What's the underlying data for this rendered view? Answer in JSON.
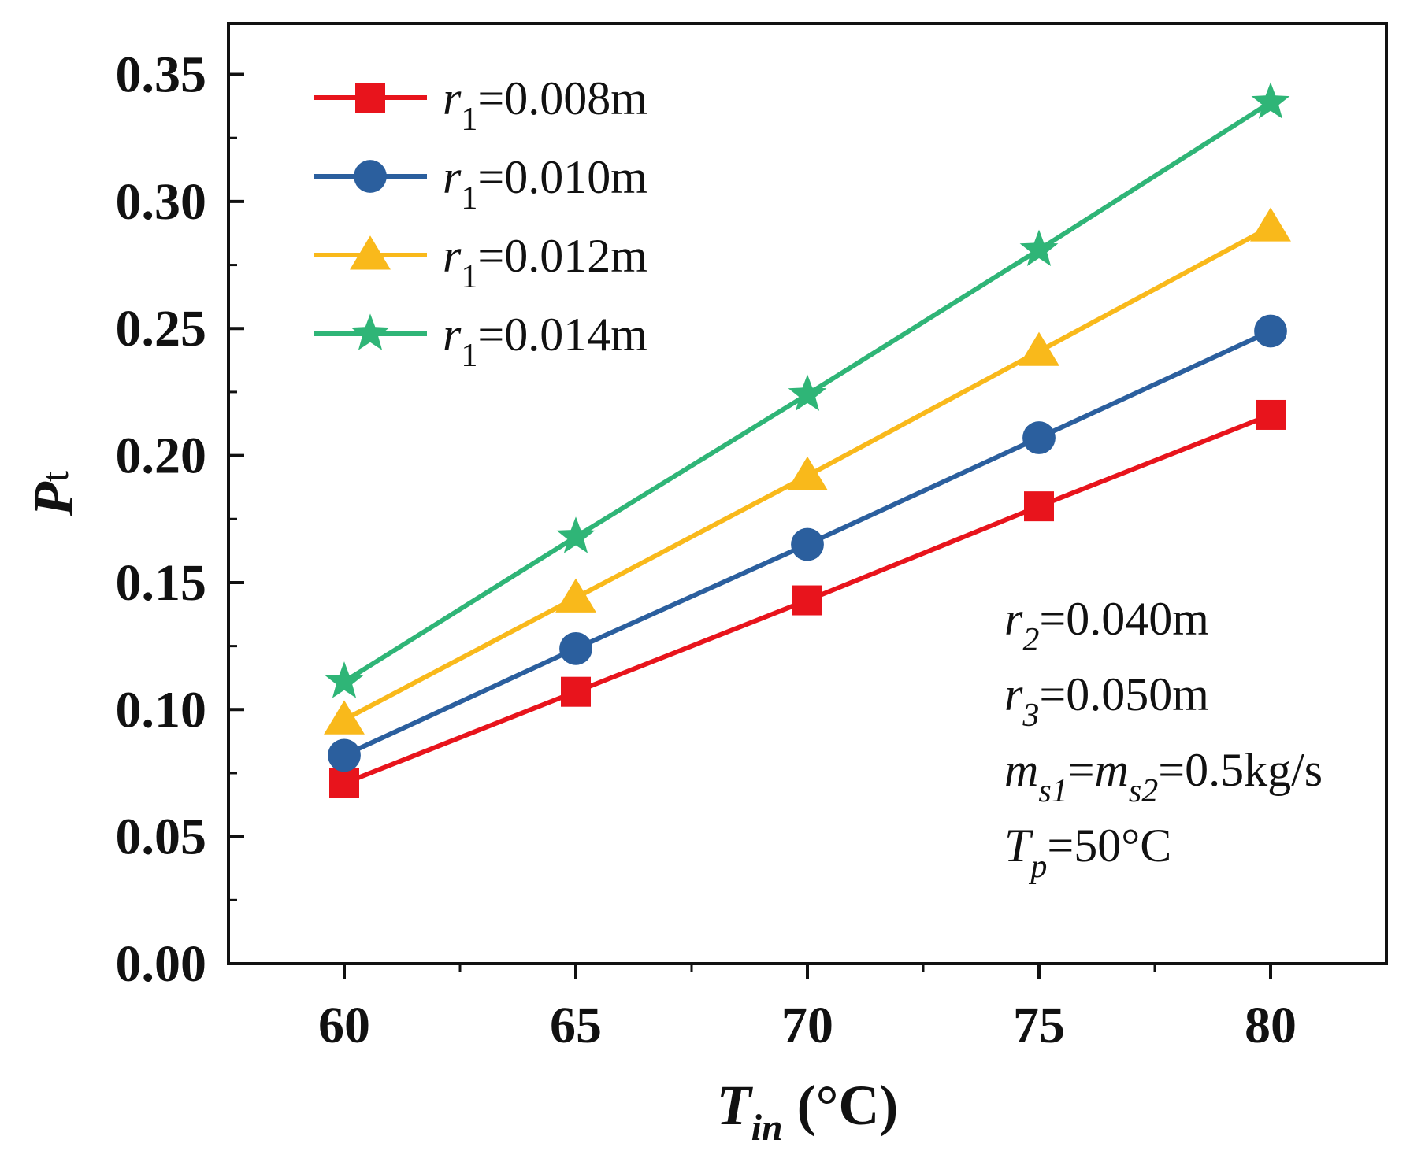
{
  "chart_data": {
    "type": "line",
    "x": [
      60,
      65,
      70,
      75,
      80
    ],
    "xlim": [
      57.5,
      82.5
    ],
    "ylim": [
      0,
      0.37
    ],
    "xticks": [
      "60",
      "65",
      "70",
      "75",
      "80"
    ],
    "yticks": [
      "0.00",
      "0.05",
      "0.10",
      "0.15",
      "0.20",
      "0.25",
      "0.30",
      "0.35"
    ],
    "xlabel": {
      "main": "T",
      "sub": "in",
      "unit": " (°C)"
    },
    "ylabel": {
      "main": "P",
      "sub": "t"
    },
    "legend_position": "top-left",
    "grid": false,
    "series": [
      {
        "var": "r",
        "sub": "1",
        "value": "=0.008m",
        "color": "#e8141c",
        "marker": "square",
        "values": [
          0.071,
          0.107,
          0.143,
          0.18,
          0.216
        ]
      },
      {
        "var": "r",
        "sub": "1",
        "value": "=0.010m",
        "color": "#2b5f9e",
        "marker": "circle",
        "values": [
          0.082,
          0.124,
          0.165,
          0.207,
          0.249
        ]
      },
      {
        "var": "r",
        "sub": "1",
        "value": "=0.012m",
        "color": "#f9b91b",
        "marker": "triangle",
        "values": [
          0.096,
          0.144,
          0.192,
          0.241,
          0.29
        ]
      },
      {
        "var": "r",
        "sub": "1",
        "value": "=0.014m",
        "color": "#2fb577",
        "marker": "star",
        "values": [
          0.111,
          0.168,
          0.224,
          0.281,
          0.339
        ]
      }
    ],
    "annotations": [
      {
        "parts": [
          {
            "t": "r",
            "i": true
          },
          {
            "t": "2",
            "i": true,
            "sub": true
          },
          {
            "t": "=0.040m"
          }
        ]
      },
      {
        "parts": [
          {
            "t": "r",
            "i": true
          },
          {
            "t": "3",
            "i": true,
            "sub": true
          },
          {
            "t": "=0.050m"
          }
        ]
      },
      {
        "parts": [
          {
            "t": "m",
            "i": true
          },
          {
            "t": "s1",
            "i": true,
            "sub": true
          },
          {
            "t": "="
          },
          {
            "t": "m",
            "i": true
          },
          {
            "t": "s2",
            "i": true,
            "sub": true
          },
          {
            "t": "=0.5kg/s"
          }
        ]
      },
      {
        "parts": [
          {
            "t": "T",
            "i": true
          },
          {
            "t": "p",
            "i": true,
            "sub": true
          },
          {
            "t": "=50°C"
          }
        ]
      }
    ]
  }
}
